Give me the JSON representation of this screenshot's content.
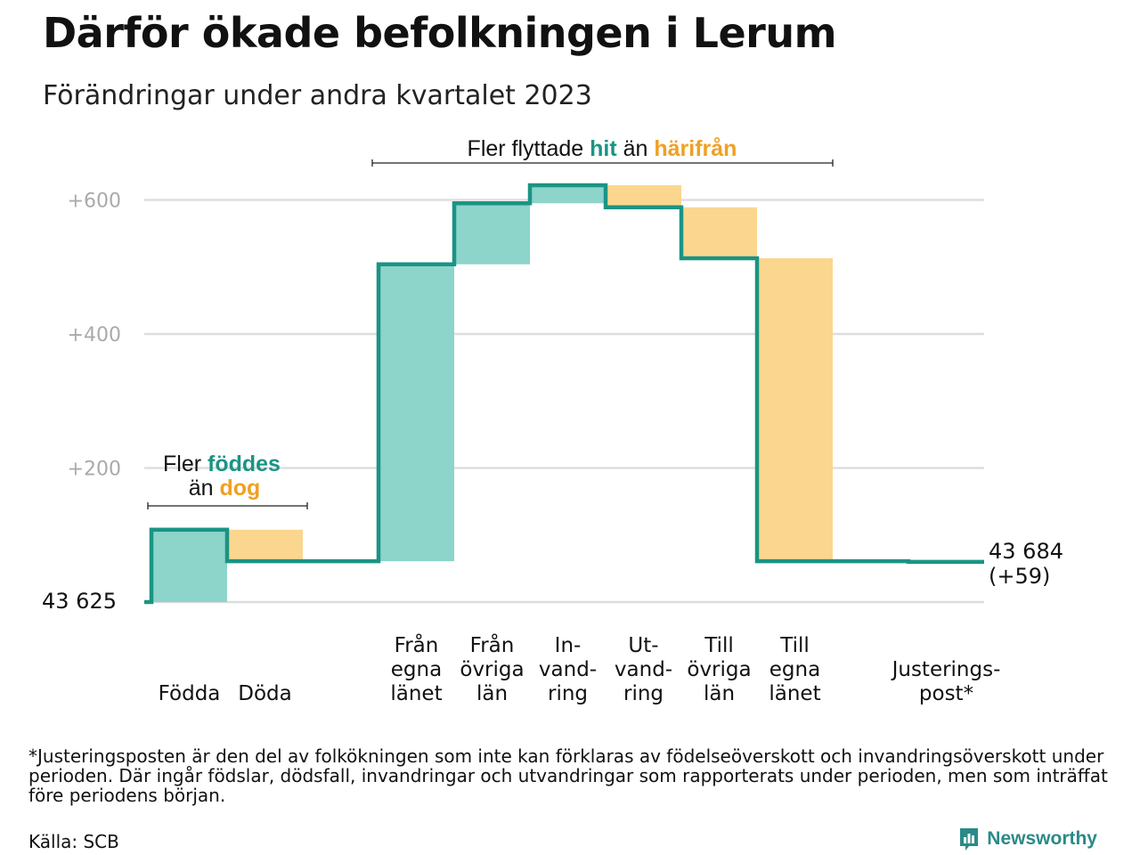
{
  "header": {
    "title": "Därför ökade befolkningen i Lerum",
    "subtitle": "Förändringar under andra kvartalet 2023"
  },
  "colors": {
    "increase_fill": "#8dd4cb",
    "decrease_fill": "#fbd68e",
    "step_line": "#1a9484",
    "teal_text": "#1a9484",
    "orange_text": "#f0a024",
    "grid": "#dddddd",
    "axis_label": "#aaaaaa"
  },
  "chart_data": {
    "type": "waterfall",
    "baseline": 43625,
    "baseline_label": "43  625",
    "end_label_value": "43 684",
    "end_label_change": "(+59)",
    "y_ticks": [
      {
        "value": 200,
        "label": "+200"
      },
      {
        "value": 400,
        "label": "+400"
      },
      {
        "value": 600,
        "label": "+600"
      }
    ],
    "ylim": [
      0,
      620
    ],
    "grid": true,
    "steps": [
      {
        "lines": [
          "Födda"
        ],
        "change": 108
      },
      {
        "lines": [
          "Döda"
        ],
        "change": -47
      },
      {
        "lines": [],
        "change": 0
      },
      {
        "lines": [
          "Från",
          "egna",
          "länet"
        ],
        "change": 443
      },
      {
        "lines": [
          "Från",
          "övriga",
          "län"
        ],
        "change": 91
      },
      {
        "lines": [
          "In-",
          "vand-",
          "ring"
        ],
        "change": 27
      },
      {
        "lines": [
          "Ut-",
          "vand-",
          "ring"
        ],
        "change": -33
      },
      {
        "lines": [
          "Till",
          "övriga",
          "län"
        ],
        "change": -76
      },
      {
        "lines": [
          "Till",
          "egna",
          "länet"
        ],
        "change": -452
      },
      {
        "lines": [],
        "change": 0
      },
      {
        "lines": [
          "Justerings-",
          "post*"
        ],
        "change": -1
      }
    ],
    "annotations": {
      "births": {
        "prefix": "Fler",
        "highlight1": "föddes",
        "middle": "än",
        "highlight2": "dog"
      },
      "moves": {
        "prefix": "Fler flyttade",
        "highlight1": "hit",
        "middle": "än",
        "highlight2": "härifrån"
      }
    }
  },
  "footer": {
    "footnote": "*Justeringsposten är den del av folkökningen som inte kan förklaras av födelseöverskott och invandringsöverskott under perioden. Där ingår födslar, dödsfall, invandringar och utvandringar som rapporterats under perioden, men som inträffat före periodens början.",
    "source": "Källa: SCB",
    "brand": "Newsworthy"
  }
}
